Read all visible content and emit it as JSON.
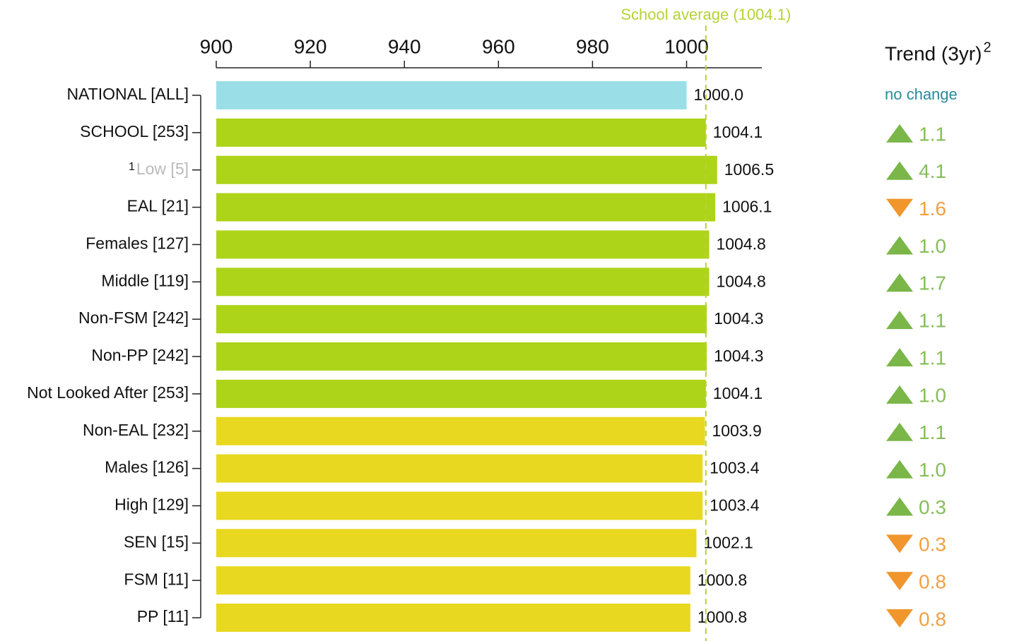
{
  "chart_data": {
    "type": "barh",
    "categories": [
      "NATIONAL [ALL]",
      "SCHOOL [253]",
      "Low [5]",
      "EAL [21]",
      "Females [127]",
      "Middle [119]",
      "Non-FSM [242]",
      "Non-PP [242]",
      "Not Looked After [253]",
      "Non-EAL [232]",
      "Males [126]",
      "High [129]",
      "SEN [15]",
      "FSM [11]",
      "PP [11]"
    ],
    "category_notes": [
      null,
      null,
      "1",
      null,
      null,
      null,
      null,
      null,
      null,
      null,
      null,
      null,
      null,
      null,
      null
    ],
    "muted_label_color": "#bbbbbb",
    "values": [
      1000.0,
      1004.1,
      1006.5,
      1006.1,
      1004.8,
      1004.8,
      1004.3,
      1004.3,
      1004.1,
      1003.9,
      1003.4,
      1003.4,
      1002.1,
      1000.8,
      1000.8
    ],
    "value_labels": [
      "1000.0",
      "1004.1",
      "1006.5",
      "1006.1",
      "1004.8",
      "1004.8",
      "1004.3",
      "1004.3",
      "1004.1",
      "1003.9",
      "1003.4",
      "1003.4",
      "1002.1",
      "1000.8",
      "1000.8"
    ],
    "colors": [
      "#9adfe8",
      "#add418",
      "#add418",
      "#add418",
      "#add418",
      "#add418",
      "#add418",
      "#add418",
      "#add418",
      "#e8d820",
      "#e8d820",
      "#e8d820",
      "#e8d820",
      "#e8d820",
      "#e8d820"
    ],
    "xlim": [
      900,
      1016
    ],
    "xticks": [
      900,
      920,
      940,
      960,
      980,
      1000
    ],
    "reference_line": {
      "value": 1004.1,
      "label": "School average (1004.1)",
      "color": "#b5d334"
    },
    "trend": {
      "title": "Trend (3yr)",
      "title_note": "2",
      "values": [
        0,
        1.1,
        4.1,
        -1.6,
        1.0,
        1.7,
        1.1,
        1.1,
        1.0,
        1.1,
        1.0,
        0.3,
        -0.3,
        -0.8,
        -0.8
      ],
      "value_labels": [
        "no change",
        "1.1",
        "4.1",
        "1.6",
        "1.0",
        "1.7",
        "1.1",
        "1.1",
        "1.0",
        "1.1",
        "1.0",
        "0.3",
        "0.3",
        "0.8",
        "0.8"
      ],
      "up_color": "#7ab648",
      "down_color": "#f0962c",
      "zero_color": "#2a8a99"
    }
  }
}
